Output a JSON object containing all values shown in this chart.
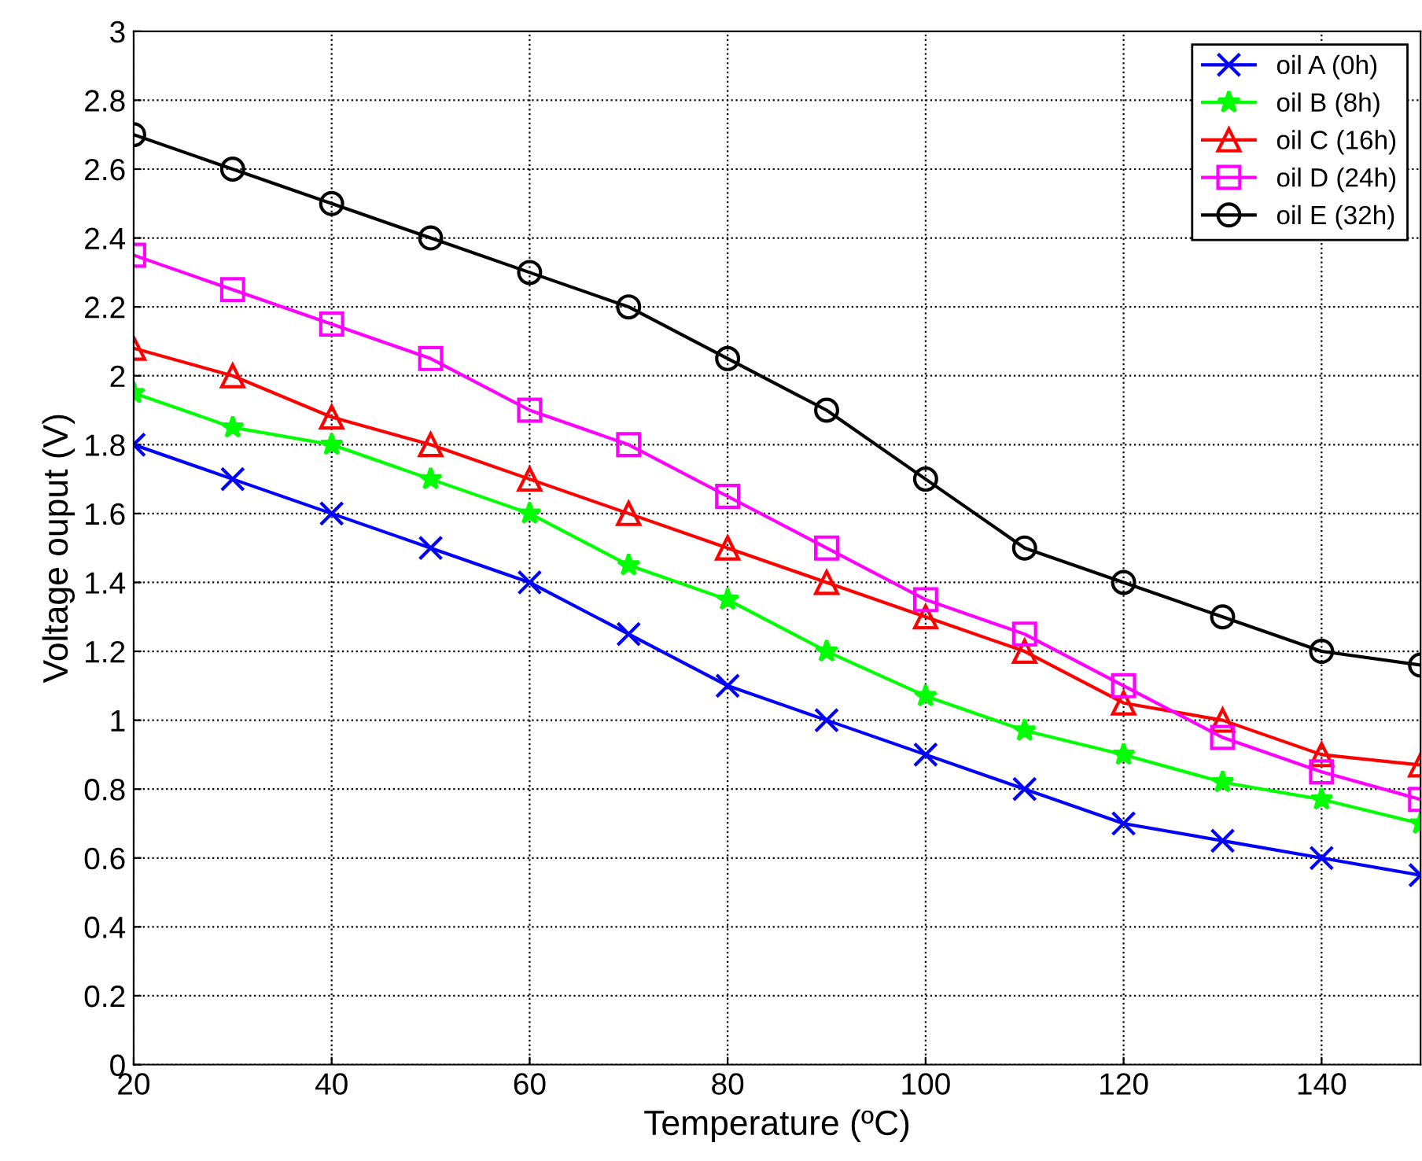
{
  "chart_data": {
    "type": "line",
    "xlabel": "Temperature (ºC)",
    "ylabel": "Voltage ouput (V)",
    "x": [
      20,
      30,
      40,
      50,
      60,
      70,
      80,
      90,
      100,
      110,
      120,
      130,
      140,
      150
    ],
    "xlim": [
      20,
      150
    ],
    "xticks": [
      20,
      40,
      60,
      80,
      100,
      120,
      140
    ],
    "ylim": [
      0,
      3
    ],
    "yticks": [
      0,
      0.2,
      0.4,
      0.6,
      0.8,
      1,
      1.2,
      1.4,
      1.6,
      1.8,
      2,
      2.2,
      2.4,
      2.6,
      2.8,
      3
    ],
    "grid": true,
    "legend": "top right",
    "line_style": "solid",
    "series": [
      {
        "name": "oil A (0h)",
        "color": "#0000ff",
        "marker": "cross",
        "values": [
          1.8,
          1.7,
          1.6,
          1.5,
          1.4,
          1.25,
          1.1,
          1.0,
          0.9,
          0.8,
          0.7,
          0.65,
          0.6,
          0.55
        ]
      },
      {
        "name": "oil B (8h)",
        "color": "#00ff00",
        "marker": "star",
        "values": [
          1.95,
          1.85,
          1.8,
          1.7,
          1.6,
          1.45,
          1.35,
          1.2,
          1.07,
          0.97,
          0.9,
          0.82,
          0.77,
          0.7
        ]
      },
      {
        "name": "oil C (16h)",
        "color": "#ff0000",
        "marker": "triangle",
        "values": [
          2.08,
          2.0,
          1.88,
          1.8,
          1.7,
          1.6,
          1.5,
          1.4,
          1.3,
          1.2,
          1.05,
          1.0,
          0.9,
          0.87
        ]
      },
      {
        "name": "oil D (24h)",
        "color": "#ff00ff",
        "marker": "square",
        "values": [
          2.35,
          2.25,
          2.15,
          2.05,
          1.9,
          1.8,
          1.65,
          1.5,
          1.35,
          1.25,
          1.1,
          0.95,
          0.85,
          0.77
        ]
      },
      {
        "name": "oil E (32h)",
        "color": "#000000",
        "marker": "circle",
        "values": [
          2.7,
          2.6,
          2.5,
          2.4,
          2.3,
          2.2,
          2.05,
          1.9,
          1.7,
          1.5,
          1.4,
          1.3,
          1.2,
          1.16
        ]
      }
    ]
  }
}
